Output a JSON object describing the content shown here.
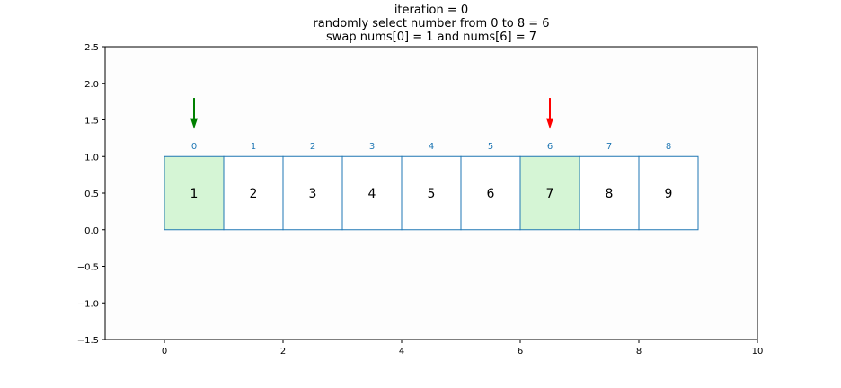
{
  "chart_data": {
    "type": "array-visualization",
    "title_lines": [
      "iteration = 0",
      "randomly select number from 0 to 8 = 6",
      "swap nums[0] = 1 and nums[6] = 7"
    ],
    "xlim": [
      -1,
      10
    ],
    "ylim": [
      -1.5,
      2.5
    ],
    "x_ticks": [
      "0",
      "2",
      "4",
      "6",
      "8",
      "10"
    ],
    "y_ticks": [
      "2.5",
      "2.0",
      "1.5",
      "1.0",
      "0.5",
      "0.0",
      "−0.5",
      "−1.0",
      "−1.5"
    ],
    "cells": [
      {
        "index": "0",
        "value": "1",
        "x": 0,
        "highlight": true
      },
      {
        "index": "1",
        "value": "2",
        "x": 1,
        "highlight": false
      },
      {
        "index": "2",
        "value": "3",
        "x": 2,
        "highlight": false
      },
      {
        "index": "3",
        "value": "4",
        "x": 3,
        "highlight": false
      },
      {
        "index": "4",
        "value": "5",
        "x": 4,
        "highlight": false
      },
      {
        "index": "5",
        "value": "6",
        "x": 5,
        "highlight": false
      },
      {
        "index": "6",
        "value": "7",
        "x": 6,
        "highlight": true
      },
      {
        "index": "7",
        "value": "8",
        "x": 7,
        "highlight": false
      },
      {
        "index": "8",
        "value": "9",
        "x": 8,
        "highlight": false
      }
    ],
    "arrows": [
      {
        "x": 0.5,
        "y_from": 1.8,
        "y_to": 1.4,
        "color": "#008000"
      },
      {
        "x": 6.5,
        "y_from": 1.8,
        "y_to": 1.4,
        "color": "#ff0000"
      }
    ],
    "colors": {
      "cell_edge": "#1f77b4",
      "highlight_fill": "#d5f5d5",
      "index_label": "#1f77b4"
    }
  }
}
